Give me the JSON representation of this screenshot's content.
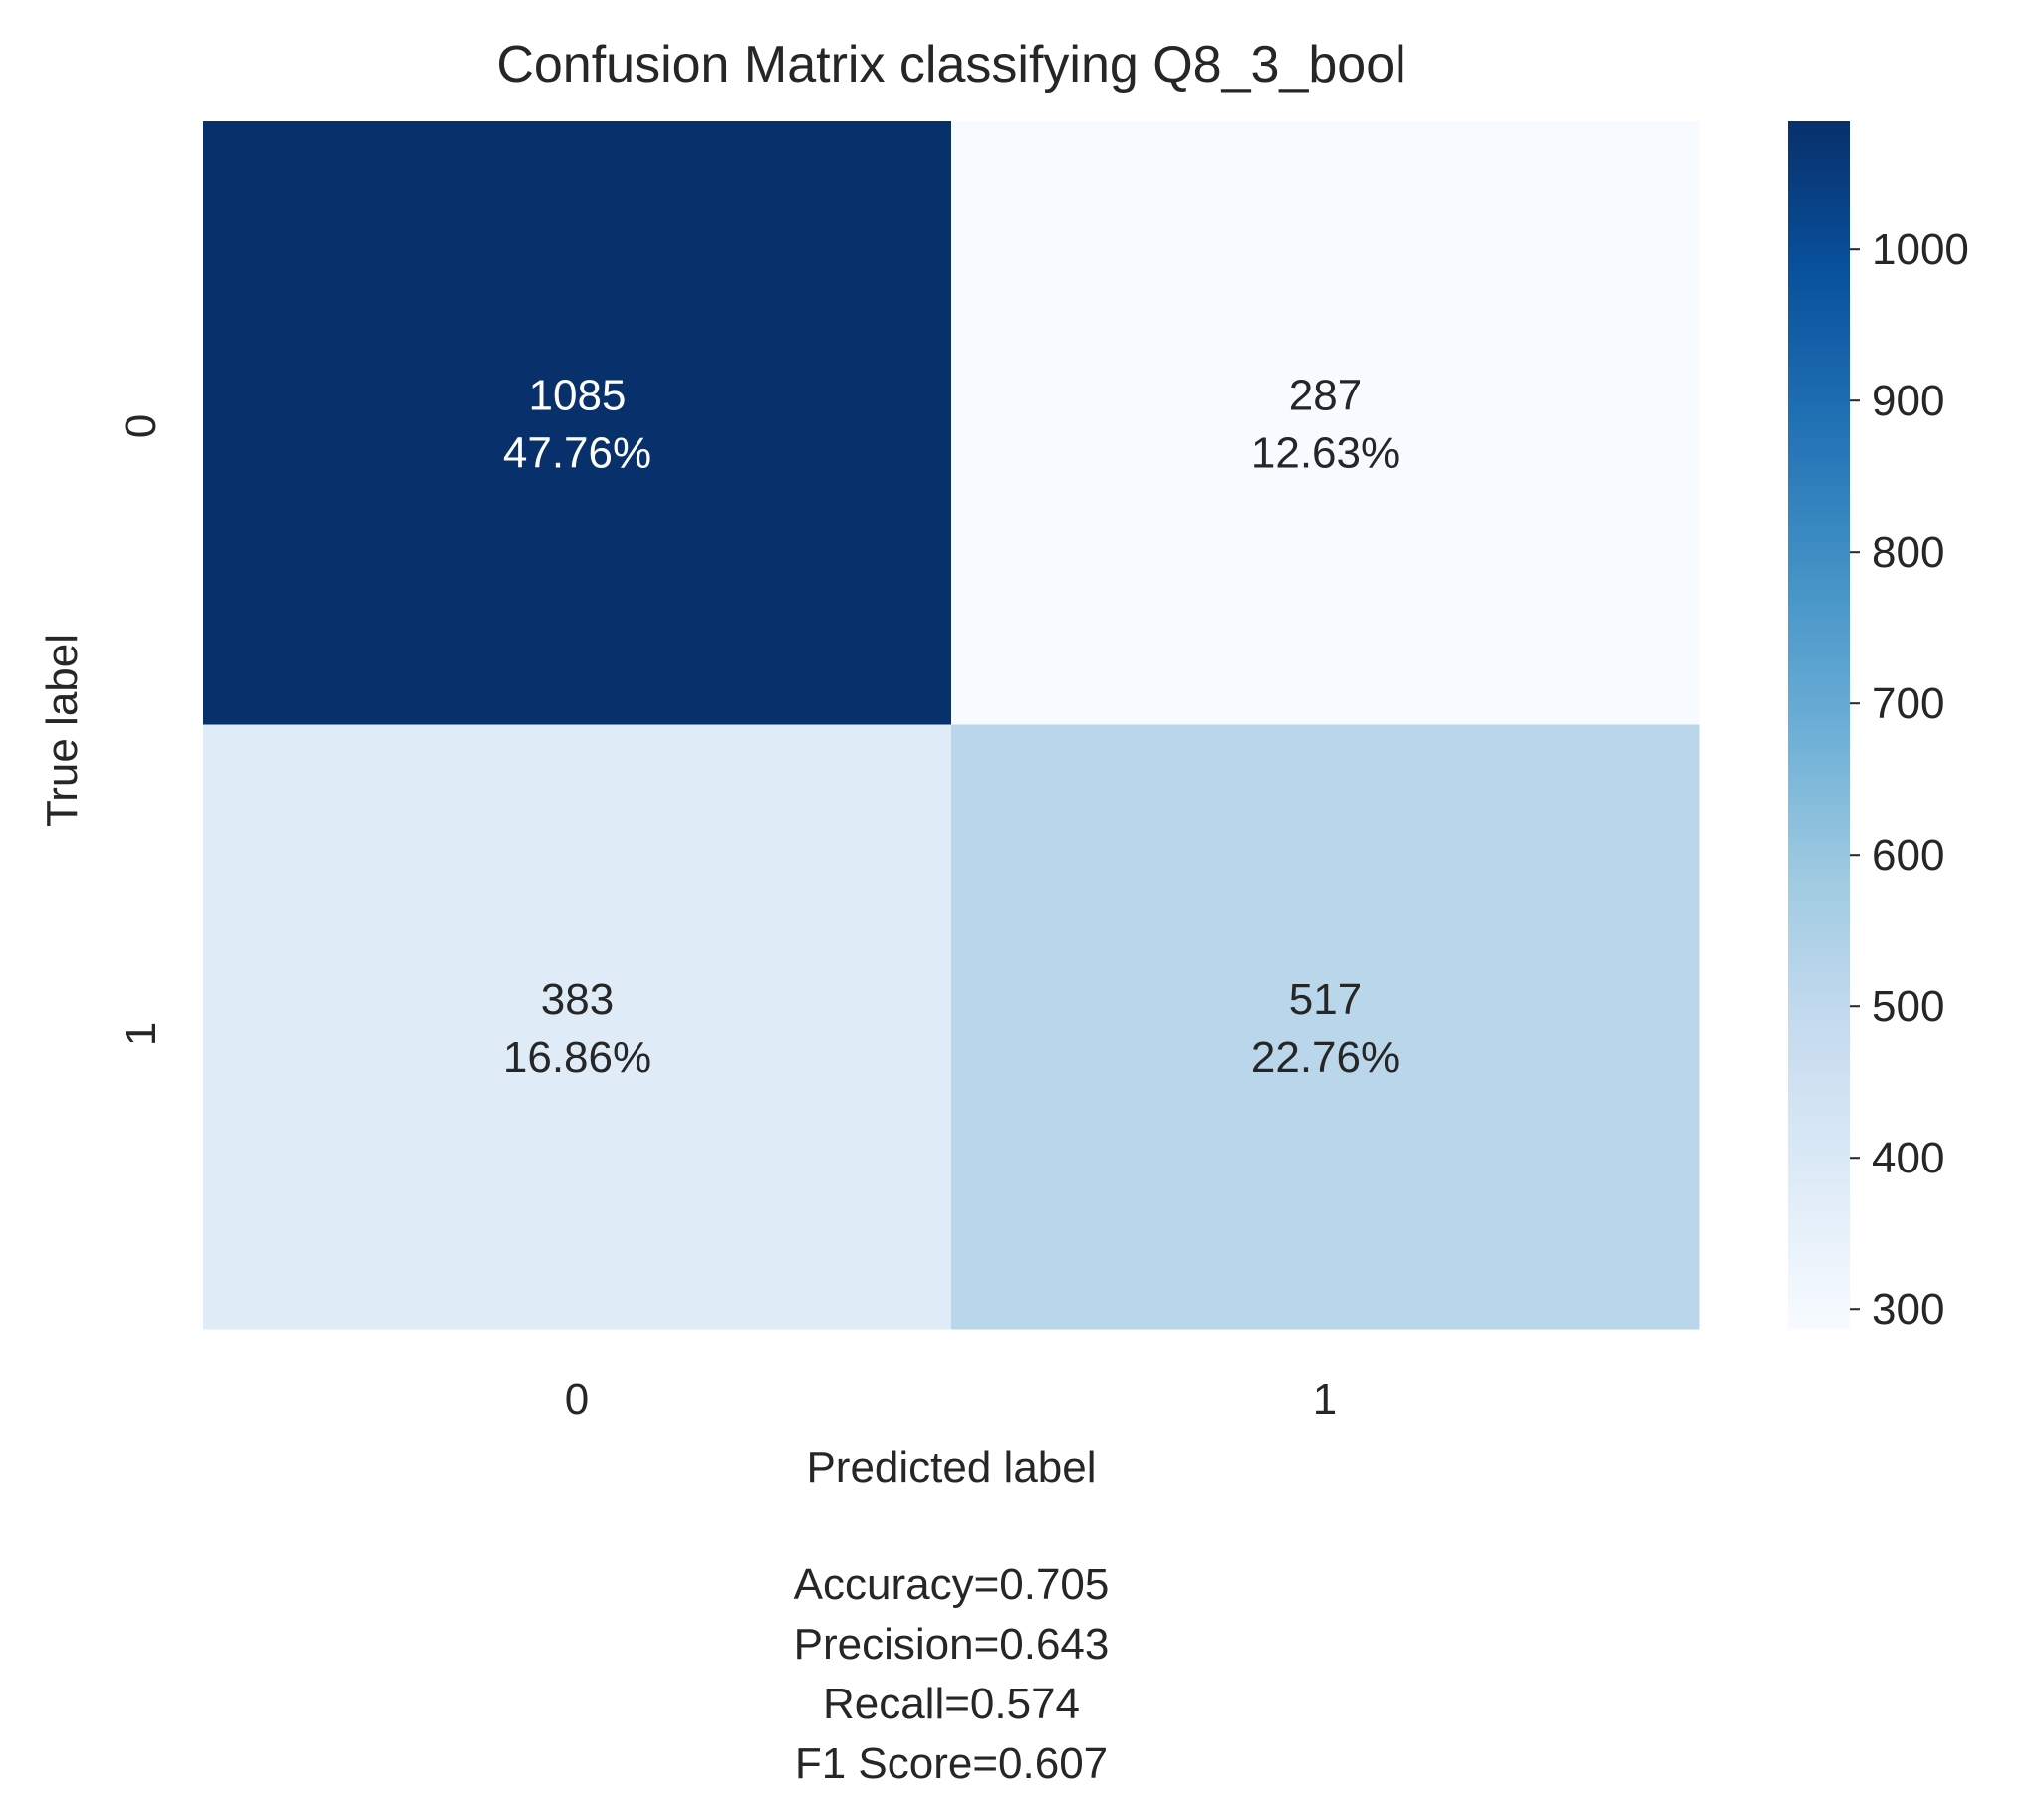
{
  "chart_data": {
    "type": "heatmap",
    "title": "Confusion Matrix classifying Q8_3_bool",
    "xlabel": "Predicted label",
    "ylabel": "True label",
    "x_categories": [
      "0",
      "1"
    ],
    "y_categories": [
      "0",
      "1"
    ],
    "matrix": [
      {
        "value": 1085,
        "label": "1085",
        "percent": "47.76%"
      },
      {
        "value": 287,
        "label": "287",
        "percent": "12.63%"
      },
      {
        "value": 383,
        "label": "383",
        "percent": "16.86%"
      },
      {
        "value": 517,
        "label": "517",
        "percent": "22.76%"
      }
    ],
    "colorbar": {
      "range": [
        287,
        1085
      ],
      "ticks": [
        "300",
        "400",
        "500",
        "600",
        "700",
        "800",
        "900",
        "1000"
      ],
      "colormap": "Blues"
    },
    "metrics": [
      "Accuracy=0.705",
      "Precision=0.643",
      "Recall=0.574",
      "F1 Score=0.607"
    ]
  }
}
